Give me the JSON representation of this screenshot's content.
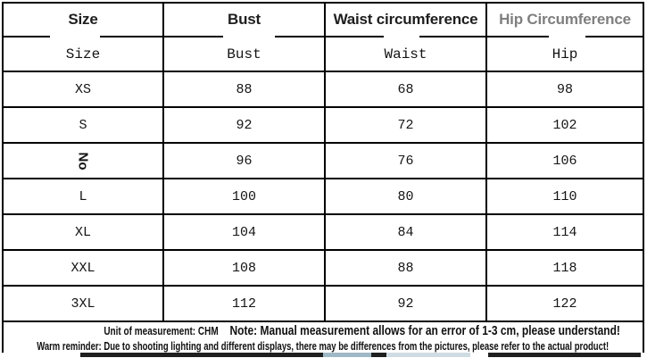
{
  "table": {
    "columns": [
      {
        "id": "size",
        "header": "Size",
        "subheader": "Size",
        "header_color": "#1e1e1e"
      },
      {
        "id": "bust",
        "header": "Bust",
        "subheader": "Bust",
        "header_color": "#1e1e1e"
      },
      {
        "id": "waist",
        "header": "Waist circumference",
        "subheader": "Waist",
        "header_color": "#1e1e1e"
      },
      {
        "id": "hip",
        "header": "Hip Circumference",
        "subheader": "Hip",
        "header_color": "#7f7f7f"
      }
    ],
    "rows": [
      {
        "size": "XS",
        "bust": "88",
        "waist": "68",
        "hip": "98"
      },
      {
        "size": "S",
        "bust": "92",
        "waist": "72",
        "hip": "102"
      },
      {
        "size": "No",
        "size_rotated": true,
        "bust": "96",
        "waist": "76",
        "hip": "106"
      },
      {
        "size": "L",
        "bust": "100",
        "waist": "80",
        "hip": "110"
      },
      {
        "size": "XL",
        "bust": "104",
        "waist": "84",
        "hip": "114"
      },
      {
        "size": "XXL",
        "bust": "108",
        "waist": "88",
        "hip": "118"
      },
      {
        "size": "3XL",
        "bust": "112",
        "waist": "92",
        "hip": "122"
      }
    ]
  },
  "notes": {
    "unit": "Unit of measurement: CHM",
    "note": "Note: Manual measurement allows for an error of 1-3 cm, please understand!",
    "warm_reminder": "Warm reminder: Due to shooting lighting and different displays, there may be differences from the pictures, please refer to the actual product!"
  },
  "colors": {
    "border": "#000000",
    "header_text": "#1e1e1e",
    "hip_header_text": "#7f7f7f",
    "body_text": "#141414",
    "strip_dark": "#1f1f1f",
    "strip_wash_blue": "#9fb8c6",
    "strip_wash_light": "#d0dce3"
  }
}
